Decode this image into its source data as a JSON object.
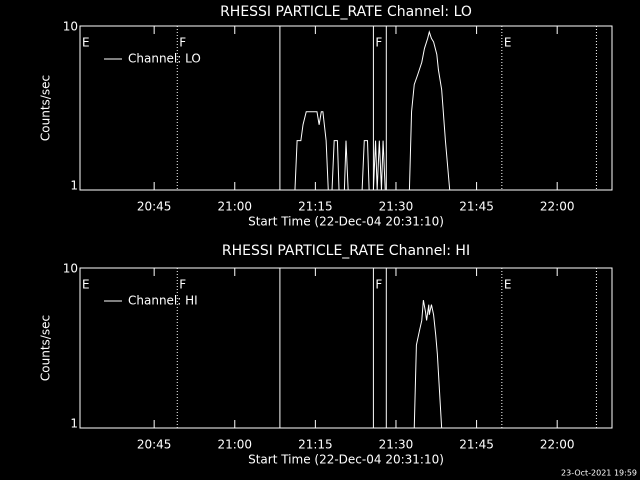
{
  "chart_data": [
    {
      "type": "line",
      "title": "RHESSI PARTICLE_RATE Channel: LO",
      "xlabel": "Start Time (22-Dec-04 20:31:10)",
      "ylabel": "Counts/sec",
      "ylog": true,
      "ylim": [
        1,
        10
      ],
      "yticks": [
        1,
        10
      ],
      "xlim": [
        1231.2,
        1330.2
      ],
      "xticks": [
        {
          "value": 1245,
          "label": "20:45"
        },
        {
          "value": 1260,
          "label": "21:00"
        },
        {
          "value": 1275,
          "label": "21:15"
        },
        {
          "value": 1290,
          "label": "21:30"
        },
        {
          "value": 1305,
          "label": "21:45"
        },
        {
          "value": 1320,
          "label": "22:00"
        }
      ],
      "x": [
        1271.2,
        1271.6,
        1272.3,
        1272.7,
        1273.3,
        1275.3,
        1275.7,
        1276.1,
        1276.4,
        1277.0,
        1277.4,
        1278.1,
        1278.5,
        1279.1,
        1279.4,
        1280.4,
        1280.7,
        1281.1,
        1283.7,
        1284.1,
        1284.7,
        1285.0,
        1285.8,
        1286.2,
        1286.5,
        1286.9,
        1287.3,
        1287.6,
        1288.0,
        1292.5,
        1292.9,
        1293.4,
        1294.0,
        1294.8,
        1295.3,
        1295.9,
        1296.2,
        1296.6,
        1297.0,
        1297.6,
        1297.9,
        1298.5,
        1299.2,
        1300.0
      ],
      "series": [
        {
          "name": "Channel: LO",
          "color": "#ffffff",
          "values": [
            1,
            2,
            2,
            2.5,
            3,
            3,
            2.5,
            3,
            3,
            2,
            1,
            1,
            2,
            2,
            1,
            1,
            2,
            1,
            1,
            2,
            2,
            1,
            1,
            2,
            1,
            2,
            1,
            2,
            1,
            1,
            3,
            4.4,
            5,
            6,
            7.3,
            8.4,
            9.2,
            8.4,
            8,
            6.7,
            5.4,
            4.1,
            2,
            1
          ]
        }
      ],
      "flags": {
        "x": [
          1231.2,
          1249.3,
          1268.4,
          1285.8,
          1288.2,
          1309.7,
          1327.3
        ],
        "labels": [
          "E",
          "F",
          null,
          "F",
          null,
          "E",
          null
        ],
        "styles": [
          "none",
          "dotted",
          "solid",
          "solid",
          "solid",
          "dotted",
          "dotted"
        ],
        "color": "#ffffff"
      }
    },
    {
      "type": "line",
      "title": "RHESSI PARTICLE_RATE Channel: HI",
      "xlabel": "Start Time (22-Dec-04 20:31:10)",
      "ylabel": "Counts/sec",
      "ylog": true,
      "ylim": [
        1,
        10
      ],
      "yticks": [
        1,
        10
      ],
      "xlim": [
        1231.2,
        1330.2
      ],
      "xticks": [
        {
          "value": 1245,
          "label": "20:45"
        },
        {
          "value": 1260,
          "label": "21:00"
        },
        {
          "value": 1275,
          "label": "21:15"
        },
        {
          "value": 1290,
          "label": "21:30"
        },
        {
          "value": 1305,
          "label": "21:45"
        },
        {
          "value": 1320,
          "label": "22:00"
        }
      ],
      "x": [
        1293.4,
        1293.8,
        1294.4,
        1294.8,
        1295.1,
        1295.5,
        1295.7,
        1296.1,
        1296.2,
        1296.6,
        1297.0,
        1297.4,
        1297.7,
        1298.1,
        1298.5
      ],
      "series": [
        {
          "name": "Channel: HI",
          "color": "#ffffff",
          "values": [
            1,
            3.3,
            4.1,
            4.7,
            6.3,
            5.3,
            4.7,
            5.9,
            5.1,
            5.9,
            5.1,
            3.8,
            2.9,
            1.7,
            1
          ]
        }
      ],
      "flags": {
        "x": [
          1231.2,
          1249.3,
          1268.4,
          1285.8,
          1288.2,
          1309.7,
          1327.3
        ],
        "labels": [
          "E",
          "F",
          null,
          "F",
          null,
          "E",
          null
        ],
        "styles": [
          "none",
          "dotted",
          "solid",
          "solid",
          "solid",
          "dotted",
          "dotted"
        ],
        "color": "#ffffff"
      }
    }
  ],
  "footer": "23-Oct-2021 19:59"
}
